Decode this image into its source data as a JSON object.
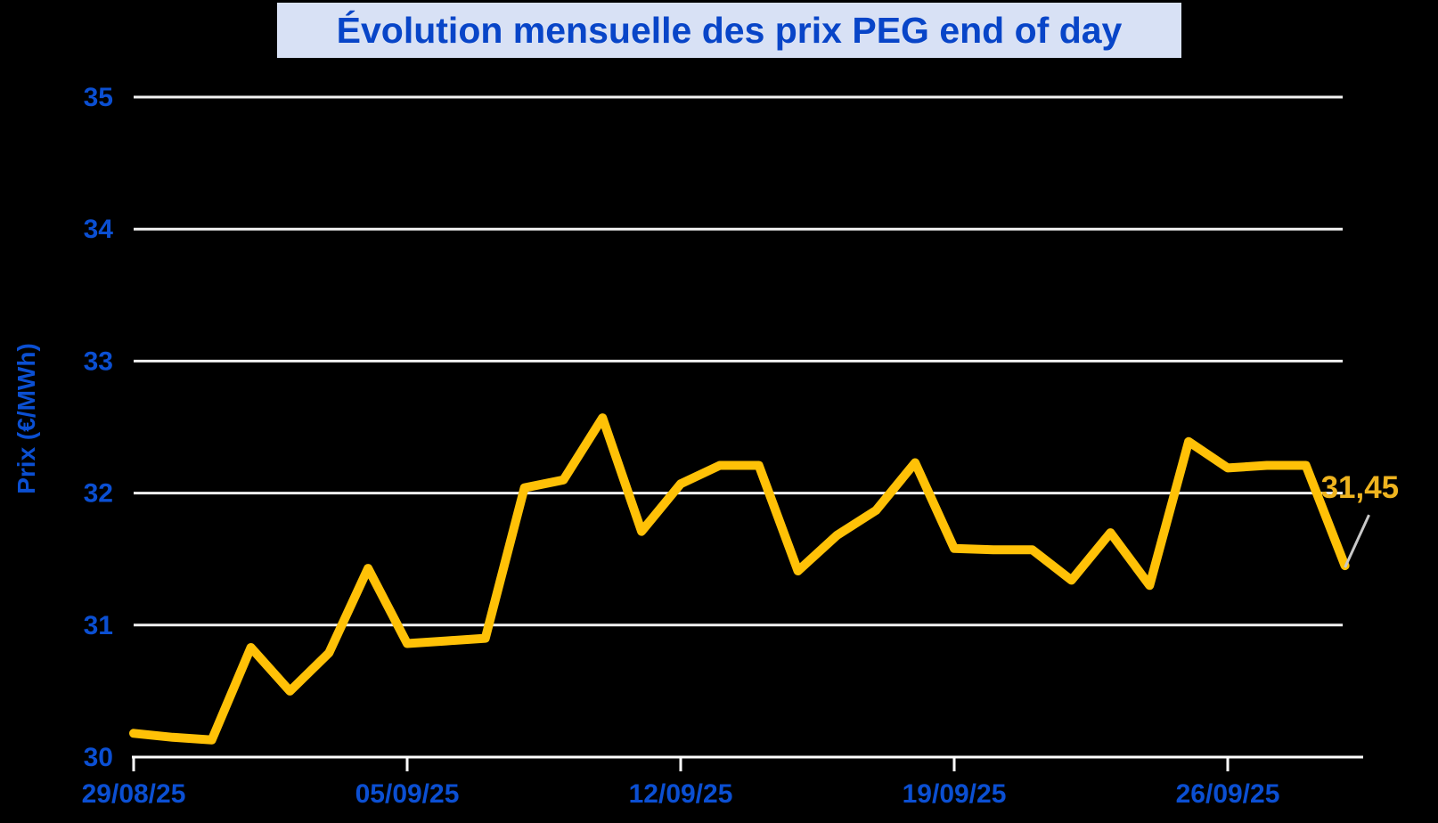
{
  "title": "Évolution mensuelle des prix PEG end of day",
  "y_axis_label": "Prix (€/MWh)",
  "colors": {
    "background": "#000000",
    "line": "#FFC107",
    "end_label_text": "#EFB41F",
    "axis_text": "#0B4FD2",
    "title_text": "#0845C8",
    "title_background": "#D8E1F5",
    "gridline": "#F2F2F2",
    "axis_line": "#FFFFFF",
    "leader_line": "#C8C8C8"
  },
  "chart_data": {
    "type": "line",
    "title": "Évolution mensuelle des prix PEG end of day",
    "xlabel": "",
    "ylabel": "Prix (€/MWh)",
    "ylim": [
      30,
      35
    ],
    "y_ticks": [
      30,
      31,
      32,
      33,
      34,
      35
    ],
    "x_tick_labels": [
      "29/08/25",
      "05/09/25",
      "12/09/25",
      "19/09/25",
      "26/09/25"
    ],
    "x_tick_indices": [
      0,
      7,
      14,
      21,
      28
    ],
    "grid": "horizontal",
    "legend": "none",
    "series_name": "Prix PEG end of day (€/MWh)",
    "dates": [
      "29/08/25",
      "30/08/25",
      "31/08/25",
      "01/09/25",
      "02/09/25",
      "03/09/25",
      "04/09/25",
      "05/09/25",
      "06/09/25",
      "07/09/25",
      "08/09/25",
      "09/09/25",
      "10/09/25",
      "11/09/25",
      "12/09/25",
      "13/09/25",
      "14/09/25",
      "15/09/25",
      "16/09/25",
      "17/09/25",
      "18/09/25",
      "19/09/25",
      "20/09/25",
      "21/09/25",
      "22/09/25",
      "23/09/25",
      "24/09/25",
      "25/09/25",
      "26/09/25",
      "27/09/25",
      "28/09/25",
      "29/09/25"
    ],
    "values": [
      30.18,
      30.15,
      30.13,
      30.83,
      30.5,
      30.79,
      31.43,
      30.86,
      30.88,
      30.9,
      32.04,
      32.1,
      32.57,
      31.71,
      32.07,
      32.21,
      32.21,
      31.41,
      31.68,
      31.87,
      32.23,
      31.58,
      31.57,
      31.57,
      31.34,
      31.7,
      31.3,
      32.39,
      32.19,
      32.21,
      32.21,
      31.45
    ],
    "last_value_label": "31,45"
  }
}
